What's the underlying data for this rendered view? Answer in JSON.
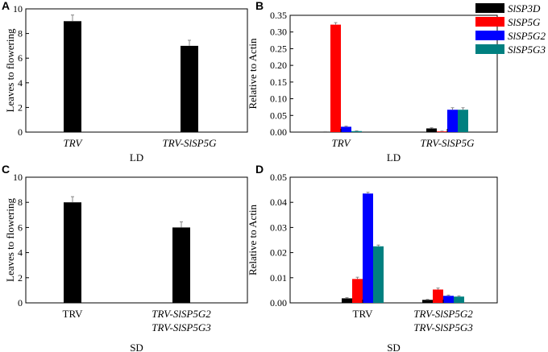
{
  "figure": {
    "description_free": true
  },
  "chart_data": [
    {
      "id": "A",
      "type": "bar",
      "panel_label": "A",
      "ylabel": "Leaves to flowering",
      "xlabel": "LD",
      "ylim": [
        0,
        10
      ],
      "yticks": [
        "0",
        "2",
        "4",
        "6",
        "8",
        "10"
      ],
      "categories": [
        [
          "TRV"
        ],
        [
          "TRV-SlSP5G"
        ]
      ],
      "category_italic": [
        true,
        true
      ],
      "series": [
        {
          "name": "",
          "color": "#000000",
          "values": [
            9,
            7
          ],
          "errors": [
            0.5,
            0.45
          ]
        }
      ]
    },
    {
      "id": "B",
      "type": "bar",
      "panel_label": "B",
      "ylabel": "Relative to Actin",
      "xlabel": "LD",
      "ylim": [
        0,
        0.35
      ],
      "yticks": [
        "0.00",
        "0.05",
        "0.10",
        "0.15",
        "0.20",
        "0.25",
        "0.30",
        "0.35"
      ],
      "categories": [
        [
          "TRV"
        ],
        [
          "TRV-SlSP5G"
        ]
      ],
      "category_italic": [
        true,
        true
      ],
      "series": [
        {
          "name": "SlSP3D",
          "color": "#000000",
          "values": [
            0.001,
            0.011
          ],
          "errors": [
            0.0005,
            0.002
          ]
        },
        {
          "name": "SlSP5G",
          "color": "#ff0000",
          "values": [
            0.322,
            0.002
          ],
          "errors": [
            0.006,
            0.001
          ]
        },
        {
          "name": "SlSP5G2",
          "color": "#0000ff",
          "values": [
            0.016,
            0.067
          ],
          "errors": [
            0.002,
            0.006
          ]
        },
        {
          "name": "SlSP5G3",
          "color": "#008080",
          "values": [
            0.003,
            0.067
          ],
          "errors": [
            0.001,
            0.006
          ]
        }
      ],
      "legend": {
        "position": "top-right",
        "entries": [
          "SlSP3D",
          "SlSP5G",
          "SlSP5G2",
          "SlSP5G3"
        ]
      }
    },
    {
      "id": "C",
      "type": "bar",
      "panel_label": "C",
      "ylabel": "Leaves to flowering",
      "xlabel": "SD",
      "ylim": [
        0,
        10
      ],
      "yticks": [
        "0",
        "2",
        "4",
        "6",
        "8",
        "10"
      ],
      "categories": [
        [
          "TRV"
        ],
        [
          "TRV-SlSP5G2",
          "TRV-SlSP5G3"
        ]
      ],
      "category_italic": [
        false,
        true
      ],
      "series": [
        {
          "name": "",
          "color": "#000000",
          "values": [
            8,
            6
          ],
          "errors": [
            0.45,
            0.45
          ]
        }
      ]
    },
    {
      "id": "D",
      "type": "bar",
      "panel_label": "D",
      "ylabel": "Relative to Actin",
      "xlabel": "SD",
      "ylim": [
        0,
        0.05
      ],
      "yticks": [
        "0.00",
        "0.01",
        "0.02",
        "0.03",
        "0.04",
        "0.05"
      ],
      "categories": [
        [
          "TRV"
        ],
        [
          "TRV-SlSP5G2",
          "TRV-SlSP5G3"
        ]
      ],
      "category_italic": [
        false,
        true
      ],
      "series": [
        {
          "name": "SlSP3D",
          "color": "#000000",
          "values": [
            0.0018,
            0.0012
          ],
          "errors": [
            0.0003,
            0.0002
          ]
        },
        {
          "name": "SlSP5G",
          "color": "#ff0000",
          "values": [
            0.0095,
            0.0053
          ],
          "errors": [
            0.0007,
            0.0006
          ]
        },
        {
          "name": "SlSP5G2",
          "color": "#0000ff",
          "values": [
            0.0435,
            0.0028
          ],
          "errors": [
            0.0005,
            0.0003
          ]
        },
        {
          "name": "SlSP5G3",
          "color": "#008080",
          "values": [
            0.0225,
            0.0025
          ],
          "errors": [
            0.0005,
            0.0003
          ]
        }
      ]
    }
  ]
}
